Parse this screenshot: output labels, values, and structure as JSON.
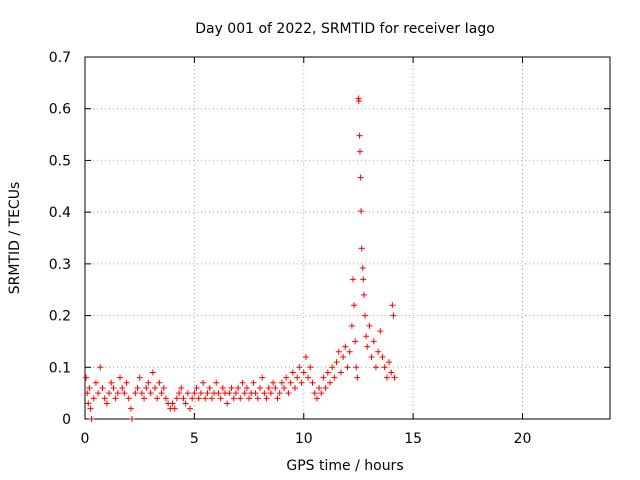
{
  "chart_data": {
    "type": "scatter",
    "title": "Day 001 of 2022, SRMTID for receiver Iago",
    "xlabel": "GPS time / hours",
    "ylabel": "SRMTID / TECUs",
    "xlim": [
      0,
      24
    ],
    "ylim": [
      0,
      0.7
    ],
    "x_ticks": [
      0,
      5,
      10,
      15,
      20
    ],
    "y_ticks": [
      0,
      0.1,
      0.2,
      0.3,
      0.4,
      0.5,
      0.6,
      0.7
    ],
    "grid": true,
    "marker": "+",
    "marker_color": "#ff0000",
    "series": [
      {
        "name": "SRMTID",
        "points": [
          [
            0.05,
            0.08
          ],
          [
            0.1,
            0.05
          ],
          [
            0.15,
            0.03
          ],
          [
            0.2,
            0.06
          ],
          [
            0.25,
            0.02
          ],
          [
            0.3,
            0.0
          ],
          [
            0.4,
            0.04
          ],
          [
            0.5,
            0.07
          ],
          [
            0.6,
            0.05
          ],
          [
            0.7,
            0.1
          ],
          [
            0.8,
            0.06
          ],
          [
            0.9,
            0.04
          ],
          [
            1.0,
            0.03
          ],
          [
            1.1,
            0.05
          ],
          [
            1.2,
            0.07
          ],
          [
            1.3,
            0.06
          ],
          [
            1.4,
            0.04
          ],
          [
            1.5,
            0.05
          ],
          [
            1.6,
            0.08
          ],
          [
            1.7,
            0.06
          ],
          [
            1.8,
            0.05
          ],
          [
            1.9,
            0.07
          ],
          [
            2.0,
            0.04
          ],
          [
            2.1,
            0.02
          ],
          [
            2.15,
            0.0
          ],
          [
            2.3,
            0.05
          ],
          [
            2.4,
            0.06
          ],
          [
            2.5,
            0.08
          ],
          [
            2.6,
            0.05
          ],
          [
            2.7,
            0.04
          ],
          [
            2.8,
            0.06
          ],
          [
            2.9,
            0.07
          ],
          [
            3.0,
            0.05
          ],
          [
            3.1,
            0.09
          ],
          [
            3.2,
            0.06
          ],
          [
            3.3,
            0.04
          ],
          [
            3.4,
            0.07
          ],
          [
            3.5,
            0.05
          ],
          [
            3.6,
            0.06
          ],
          [
            3.7,
            0.04
          ],
          [
            3.8,
            0.03
          ],
          [
            3.9,
            0.02
          ],
          [
            4.0,
            0.03
          ],
          [
            4.1,
            0.02
          ],
          [
            4.2,
            0.04
          ],
          [
            4.3,
            0.05
          ],
          [
            4.4,
            0.06
          ],
          [
            4.5,
            0.04
          ],
          [
            4.6,
            0.03
          ],
          [
            4.7,
            0.05
          ],
          [
            4.8,
            0.02
          ],
          [
            4.9,
            0.04
          ],
          [
            5.0,
            0.05
          ],
          [
            5.1,
            0.06
          ],
          [
            5.2,
            0.04
          ],
          [
            5.3,
            0.05
          ],
          [
            5.4,
            0.07
          ],
          [
            5.5,
            0.04
          ],
          [
            5.6,
            0.05
          ],
          [
            5.7,
            0.06
          ],
          [
            5.8,
            0.04
          ],
          [
            5.9,
            0.05
          ],
          [
            6.0,
            0.07
          ],
          [
            6.1,
            0.05
          ],
          [
            6.2,
            0.04
          ],
          [
            6.3,
            0.06
          ],
          [
            6.4,
            0.05
          ],
          [
            6.5,
            0.03
          ],
          [
            6.6,
            0.05
          ],
          [
            6.7,
            0.06
          ],
          [
            6.8,
            0.04
          ],
          [
            6.9,
            0.05
          ],
          [
            7.0,
            0.06
          ],
          [
            7.1,
            0.04
          ],
          [
            7.2,
            0.07
          ],
          [
            7.3,
            0.05
          ],
          [
            7.4,
            0.06
          ],
          [
            7.5,
            0.04
          ],
          [
            7.6,
            0.05
          ],
          [
            7.7,
            0.07
          ],
          [
            7.8,
            0.05
          ],
          [
            7.9,
            0.04
          ],
          [
            8.0,
            0.06
          ],
          [
            8.1,
            0.08
          ],
          [
            8.2,
            0.05
          ],
          [
            8.3,
            0.04
          ],
          [
            8.4,
            0.06
          ],
          [
            8.5,
            0.05
          ],
          [
            8.6,
            0.07
          ],
          [
            8.7,
            0.06
          ],
          [
            8.8,
            0.04
          ],
          [
            8.9,
            0.05
          ],
          [
            9.0,
            0.07
          ],
          [
            9.1,
            0.06
          ],
          [
            9.2,
            0.08
          ],
          [
            9.3,
            0.05
          ],
          [
            9.4,
            0.07
          ],
          [
            9.5,
            0.09
          ],
          [
            9.6,
            0.06
          ],
          [
            9.7,
            0.08
          ],
          [
            9.8,
            0.1
          ],
          [
            9.9,
            0.07
          ],
          [
            10.0,
            0.09
          ],
          [
            10.1,
            0.12
          ],
          [
            10.2,
            0.08
          ],
          [
            10.3,
            0.1
          ],
          [
            10.4,
            0.07
          ],
          [
            10.5,
            0.05
          ],
          [
            10.6,
            0.04
          ],
          [
            10.7,
            0.06
          ],
          [
            10.8,
            0.05
          ],
          [
            10.9,
            0.08
          ],
          [
            11.0,
            0.06
          ],
          [
            11.1,
            0.09
          ],
          [
            11.2,
            0.07
          ],
          [
            11.3,
            0.1
          ],
          [
            11.4,
            0.08
          ],
          [
            11.5,
            0.11
          ],
          [
            11.6,
            0.13
          ],
          [
            11.7,
            0.09
          ],
          [
            11.8,
            0.12
          ],
          [
            11.9,
            0.14
          ],
          [
            12.0,
            0.1
          ],
          [
            12.1,
            0.13
          ],
          [
            12.2,
            0.18
          ],
          [
            12.25,
            0.27
          ],
          [
            12.3,
            0.22
          ],
          [
            12.35,
            0.15
          ],
          [
            12.4,
            0.1
          ],
          [
            12.45,
            0.08
          ],
          [
            12.5,
            0.62
          ],
          [
            12.52,
            0.615
          ],
          [
            12.55,
            0.548
          ],
          [
            12.57,
            0.517
          ],
          [
            12.6,
            0.467
          ],
          [
            12.62,
            0.402
          ],
          [
            12.65,
            0.33
          ],
          [
            12.7,
            0.292
          ],
          [
            12.72,
            0.27
          ],
          [
            12.75,
            0.24
          ],
          [
            12.8,
            0.2
          ],
          [
            12.85,
            0.16
          ],
          [
            12.9,
            0.14
          ],
          [
            13.0,
            0.18
          ],
          [
            13.1,
            0.12
          ],
          [
            13.2,
            0.15
          ],
          [
            13.3,
            0.1
          ],
          [
            13.4,
            0.13
          ],
          [
            13.5,
            0.17
          ],
          [
            13.6,
            0.12
          ],
          [
            13.7,
            0.1
          ],
          [
            13.8,
            0.08
          ],
          [
            13.9,
            0.11
          ],
          [
            14.0,
            0.09
          ],
          [
            14.05,
            0.22
          ],
          [
            14.1,
            0.2
          ],
          [
            14.15,
            0.08
          ]
        ]
      }
    ]
  }
}
